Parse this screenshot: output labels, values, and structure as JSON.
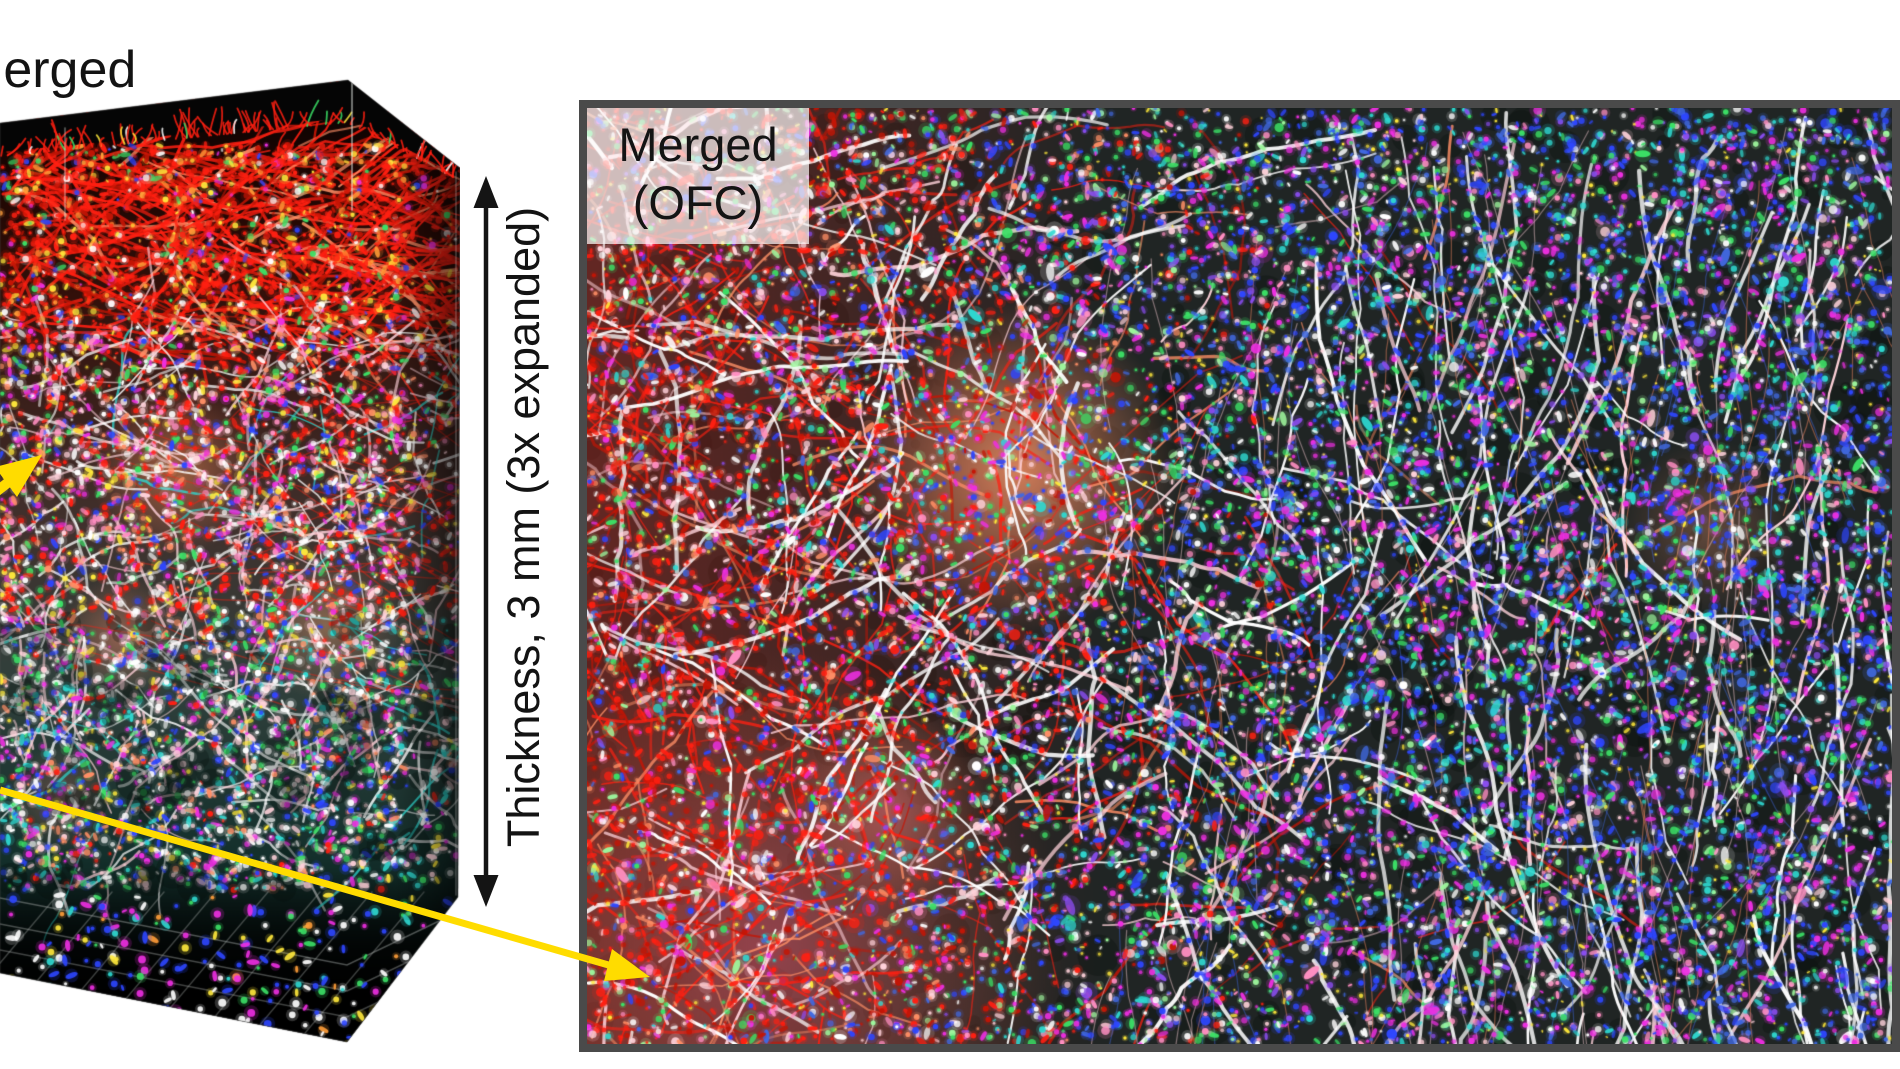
{
  "figure": {
    "left_volume": {
      "title": "Merged",
      "thickness_label": "Thickness, 3 mm (3x expanded)"
    },
    "right_panel": {
      "label_line1": "Merged",
      "label_line2": "(OFC)"
    },
    "colors": {
      "annotation_black": "#141414",
      "callout_yellow": "#ffdc00",
      "panel_border": "#4a4a4a",
      "panel_label_background": "rgba(255,252,252,0.70)",
      "volume_background": "#000000",
      "palette": {
        "red": "#ff2012",
        "dark_red": "#c41505",
        "salmon": "#ff8f66",
        "orange": "#ff9d38",
        "pink": "#ff8fc2",
        "light_pink": "#ffd2da",
        "magenta": "#ee2fe2",
        "purple": "#8a4df0",
        "blue": "#2e46ff",
        "royal_blue": "#4169e1",
        "cyan": "#2fd8d0",
        "green": "#3ce066",
        "light_green": "#9df59c",
        "yellow": "#ffe93c",
        "white": "#ffffff",
        "teal_floor": "#1d3531"
      }
    }
  }
}
